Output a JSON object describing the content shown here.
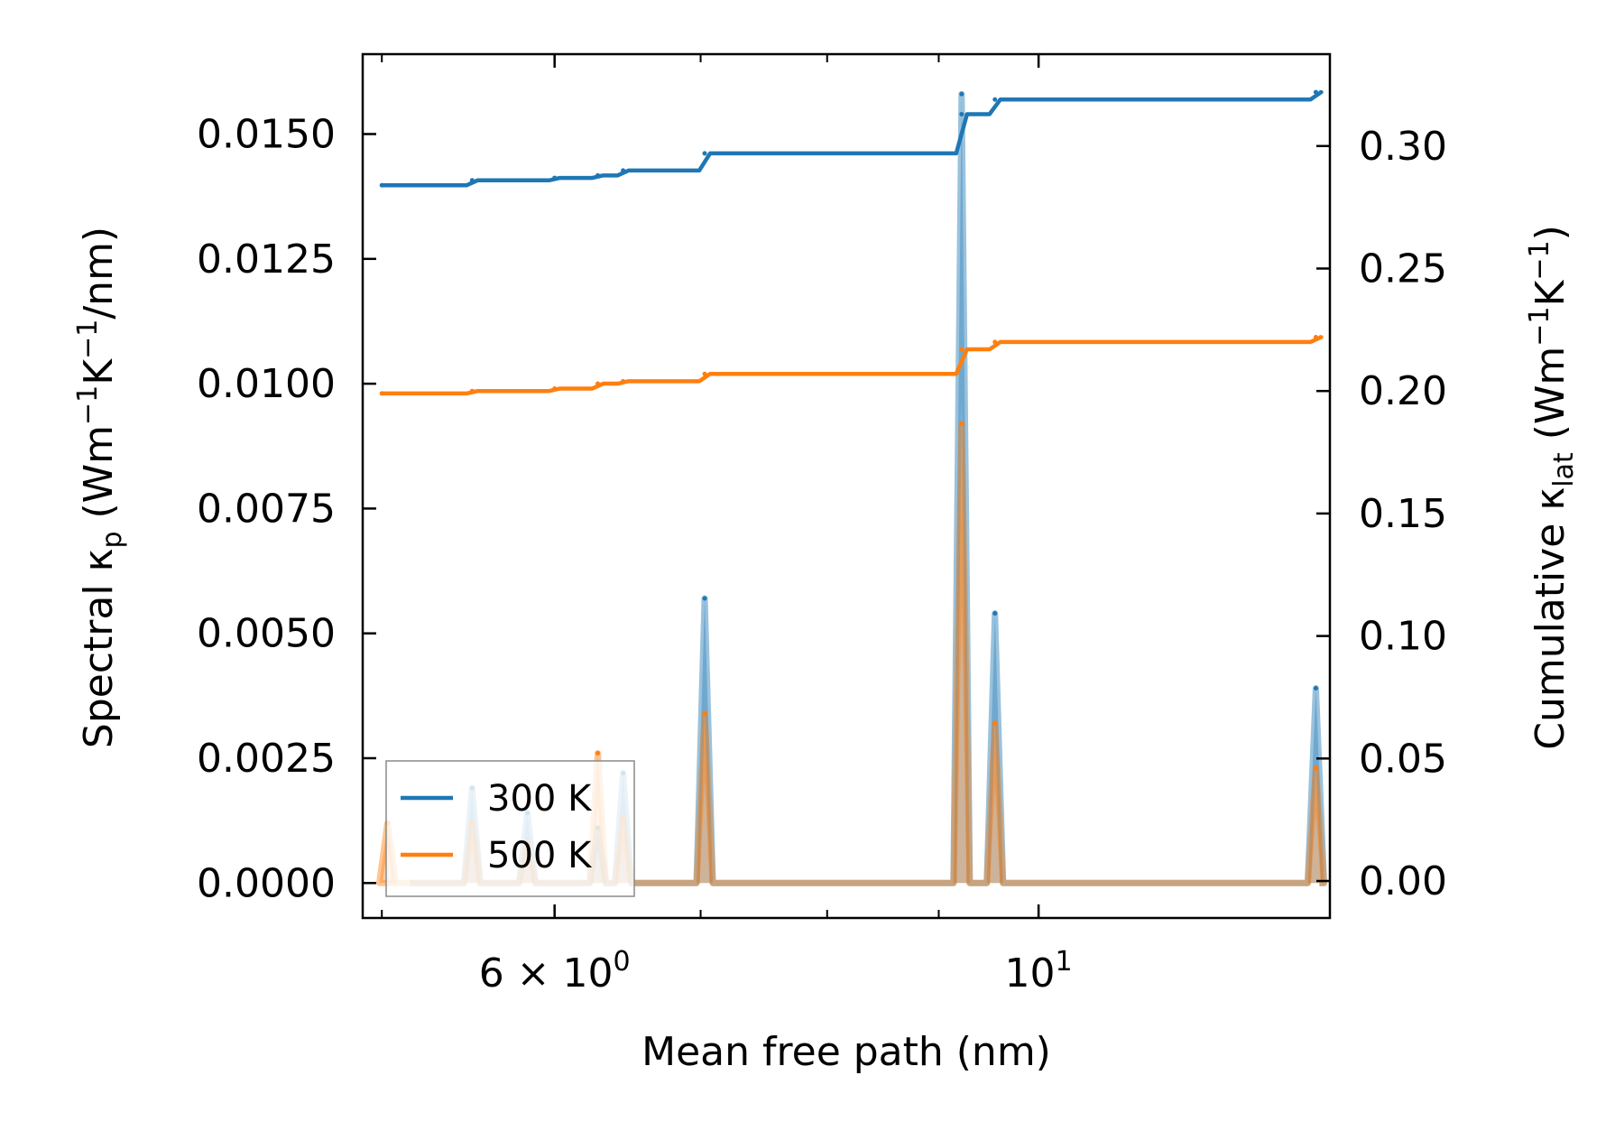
{
  "chart_data": {
    "type": "line",
    "xscale": "log",
    "xlabel": "Mean free path (nm)",
    "ylabel_left": {
      "pre": "Spectral κ",
      "sub": "p",
      "post": " (Wm",
      "sup1": "−1",
      "mid": "K",
      "sup2": "−1",
      "end": "/nm)"
    },
    "ylabel_right": {
      "pre": "Cumulative κ",
      "sub": "lat",
      "post": " (Wm",
      "sup1": "−1",
      "mid": "K",
      "sup2": "−1",
      "end": ")"
    },
    "xlim": [
      4.9,
      13.6
    ],
    "ylim_left": [
      -0.0007,
      0.0166
    ],
    "ylim_right": [
      -0.0151,
      0.3375
    ],
    "xticks_major": [
      {
        "value": 6,
        "base": "6 × 10",
        "exp": "0"
      },
      {
        "value": 10,
        "base": "10",
        "exp": "1"
      }
    ],
    "xticks_minor": [
      5,
      6,
      7,
      8,
      9,
      10
    ],
    "yticks_left": [
      {
        "value": 0.0,
        "label": "0.0000"
      },
      {
        "value": 0.0025,
        "label": "0.0025"
      },
      {
        "value": 0.005,
        "label": "0.0050"
      },
      {
        "value": 0.0075,
        "label": "0.0075"
      },
      {
        "value": 0.01,
        "label": "0.0100"
      },
      {
        "value": 0.0125,
        "label": "0.0125"
      },
      {
        "value": 0.015,
        "label": "0.0150"
      }
    ],
    "yticks_right": [
      {
        "value": 0.0,
        "label": "0.00"
      },
      {
        "value": 0.05,
        "label": "0.05"
      },
      {
        "value": 0.1,
        "label": "0.10"
      },
      {
        "value": 0.15,
        "label": "0.15"
      },
      {
        "value": 0.2,
        "label": "0.20"
      },
      {
        "value": 0.25,
        "label": "0.25"
      },
      {
        "value": 0.3,
        "label": "0.30"
      }
    ],
    "legend": {
      "position": "lower-left",
      "entries": [
        {
          "name": "300 K",
          "color": "#1f77b4"
        },
        {
          "name": "500 K",
          "color": "#ff7f0e"
        }
      ]
    },
    "series": [
      {
        "name": "300 K",
        "color": "#1f77b4",
        "spectral_peaks": [
          {
            "x": 5.5,
            "y": 0.0019
          },
          {
            "x": 5.83,
            "y": 0.0014
          },
          {
            "x": 6.28,
            "y": 0.0011
          },
          {
            "x": 6.45,
            "y": 0.0022
          },
          {
            "x": 7.03,
            "y": 0.0057
          },
          {
            "x": 9.22,
            "y": 0.0158
          },
          {
            "x": 9.55,
            "y": 0.0054
          },
          {
            "x": 13.4,
            "y": 0.0039
          }
        ],
        "cumulative": [
          {
            "x": 5.0,
            "y": 0.284
          },
          {
            "x": 5.5,
            "y": 0.286
          },
          {
            "x": 6.0,
            "y": 0.287
          },
          {
            "x": 6.28,
            "y": 0.288
          },
          {
            "x": 6.45,
            "y": 0.29
          },
          {
            "x": 7.03,
            "y": 0.297
          },
          {
            "x": 9.22,
            "y": 0.313
          },
          {
            "x": 9.55,
            "y": 0.319
          },
          {
            "x": 13.4,
            "y": 0.322
          }
        ]
      },
      {
        "name": "500 K",
        "color": "#ff7f0e",
        "spectral_peaks": [
          {
            "x": 5.03,
            "y": 0.0012
          },
          {
            "x": 5.5,
            "y": 0.0012
          },
          {
            "x": 5.83,
            "y": 0.0008
          },
          {
            "x": 6.28,
            "y": 0.0026
          },
          {
            "x": 6.45,
            "y": 0.0013
          },
          {
            "x": 7.03,
            "y": 0.0034
          },
          {
            "x": 9.22,
            "y": 0.0092
          },
          {
            "x": 9.55,
            "y": 0.0032
          },
          {
            "x": 13.4,
            "y": 0.0023
          }
        ],
        "cumulative": [
          {
            "x": 5.0,
            "y": 0.199
          },
          {
            "x": 5.5,
            "y": 0.2
          },
          {
            "x": 6.0,
            "y": 0.201
          },
          {
            "x": 6.28,
            "y": 0.203
          },
          {
            "x": 6.45,
            "y": 0.204
          },
          {
            "x": 7.03,
            "y": 0.207
          },
          {
            "x": 9.22,
            "y": 0.217
          },
          {
            "x": 9.55,
            "y": 0.22
          },
          {
            "x": 13.4,
            "y": 0.222
          }
        ]
      }
    ]
  }
}
